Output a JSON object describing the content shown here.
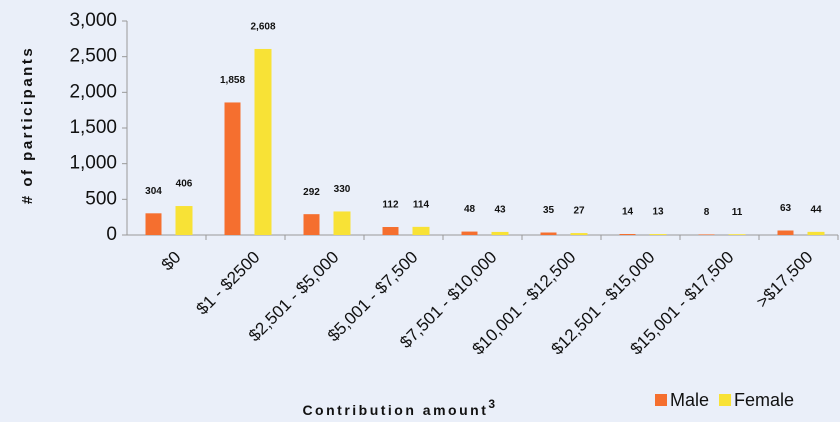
{
  "chart_data": {
    "type": "bar",
    "ylabel": "# of participants",
    "xlabel": "Contribution amount",
    "xlabel_note": "3",
    "categories": [
      "$0",
      "$1 - $2500",
      "$2,501 - $5,000",
      "$5,001 - $7,500",
      "$7,501 - $10,000",
      "$10,001 - $12,500",
      "$12,501 - $15,000",
      "$15,001 - $17,500",
      ">$17,500"
    ],
    "series": [
      {
        "name": "Male",
        "color": "#f56f2f",
        "values": [
          304,
          1858,
          292,
          112,
          48,
          35,
          14,
          8,
          63
        ],
        "value_labels": [
          "304",
          "1,858",
          "292",
          "112",
          "48",
          "35",
          "14",
          "8",
          "63"
        ]
      },
      {
        "name": "Female",
        "color": "#f8e236",
        "values": [
          406,
          2608,
          330,
          114,
          43,
          27,
          13,
          11,
          44
        ],
        "value_labels": [
          "406",
          "2,608",
          "330",
          "114",
          "43",
          "27",
          "13",
          "11",
          "44"
        ]
      }
    ],
    "ylim": [
      0,
      3000
    ],
    "yticks": [
      0,
      500,
      {
        "value": 1000,
        "label": "1,000"
      },
      {
        "value": 1500,
        "label": "1,500"
      },
      {
        "value": 2000,
        "label": "2,000"
      },
      {
        "value": 2500,
        "label": "2,500"
      },
      {
        "value": 3000,
        "label": "3,000"
      }
    ],
    "legend": "bottom-right"
  }
}
